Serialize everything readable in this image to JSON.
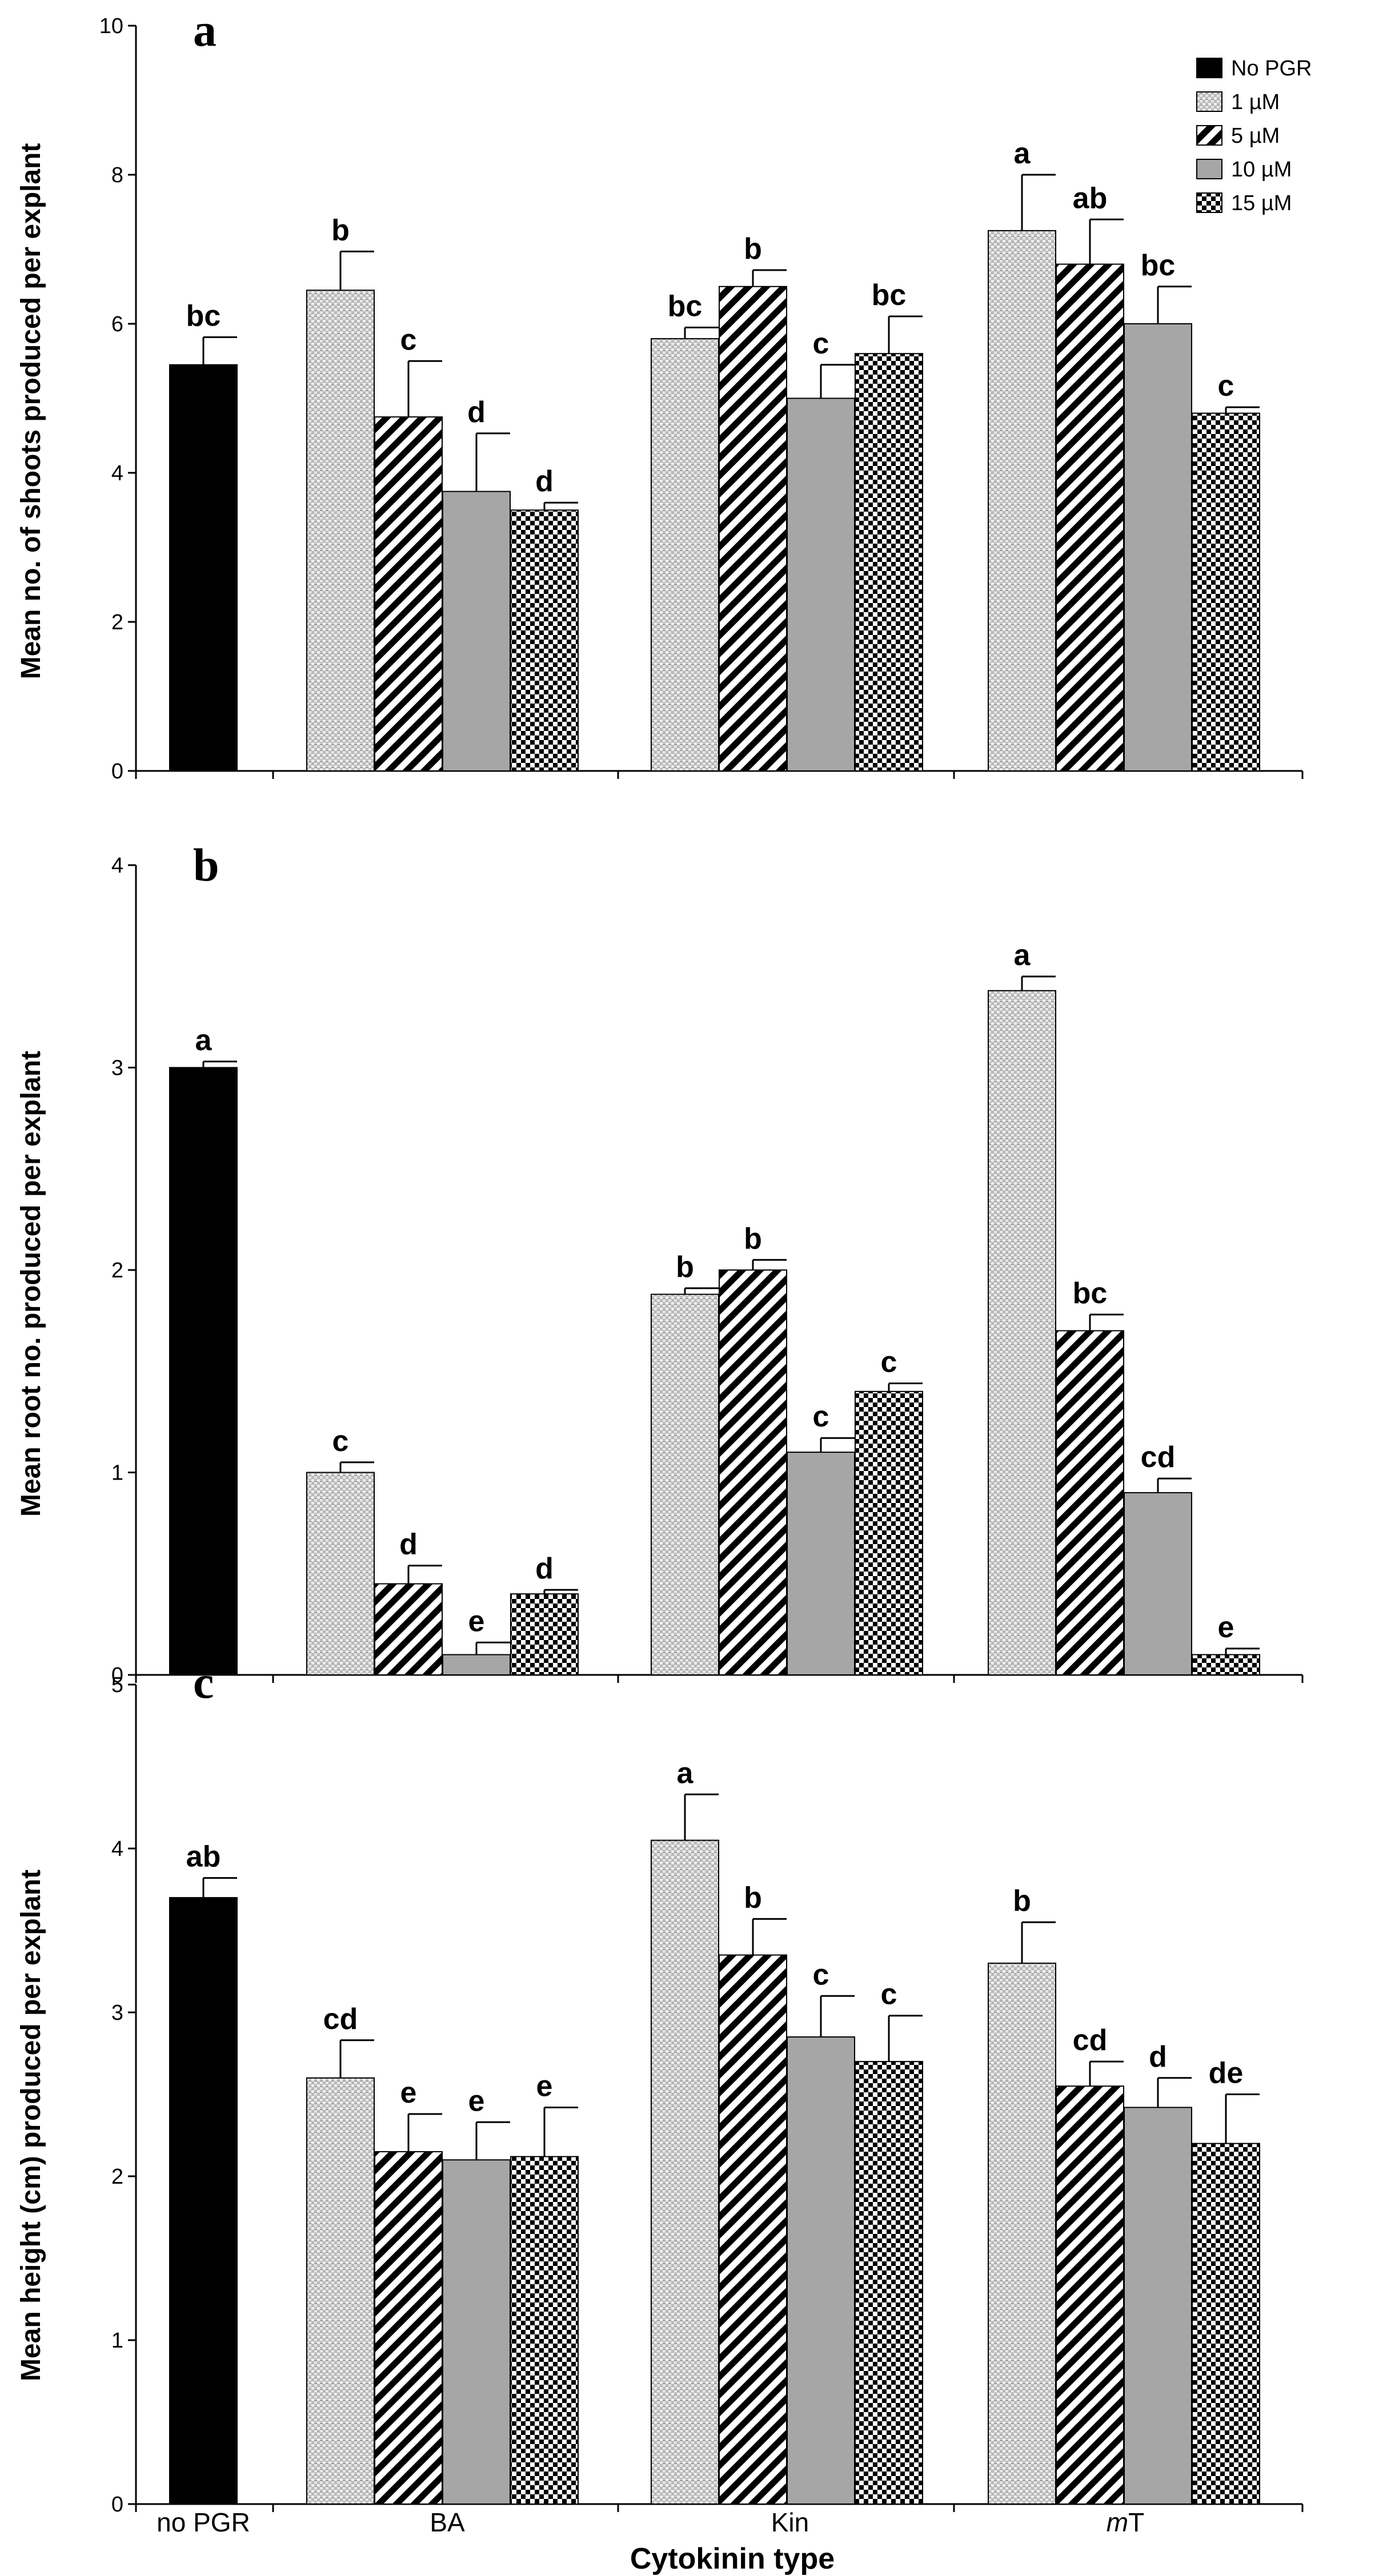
{
  "chart_data": [
    {
      "type": "bar",
      "panel": "a",
      "ylabel": "Mean no. of shoots produced per explant",
      "xlabel": "",
      "ylim": [
        0,
        10
      ],
      "yticks": [
        "0",
        "2",
        "4",
        "6",
        "8",
        "10"
      ],
      "categories": [
        "no PGR",
        "BA",
        "Kin",
        "mT"
      ],
      "series": [
        {
          "name": "No PGR",
          "values": [
            5.45,
            null,
            null,
            null
          ],
          "errors": [
            0.37,
            null,
            null,
            null
          ],
          "labels": [
            "bc",
            null,
            null,
            null
          ]
        },
        {
          "name": "1 µM",
          "values": [
            null,
            6.45,
            5.8,
            7.25
          ],
          "errors": [
            null,
            0.52,
            0.15,
            0.75
          ],
          "labels": [
            null,
            "b",
            "bc",
            "a"
          ]
        },
        {
          "name": "5 µM",
          "values": [
            null,
            4.75,
            6.5,
            6.8
          ],
          "errors": [
            null,
            0.75,
            0.22,
            0.6
          ],
          "labels": [
            null,
            "c",
            "b",
            "ab"
          ]
        },
        {
          "name": "10 µM",
          "values": [
            null,
            3.75,
            5.0,
            6.0
          ],
          "errors": [
            null,
            0.78,
            0.45,
            0.5
          ],
          "labels": [
            null,
            "d",
            "c",
            "bc"
          ]
        },
        {
          "name": "15 µM",
          "values": [
            null,
            3.5,
            5.6,
            4.8
          ],
          "errors": [
            null,
            0.1,
            0.5,
            0.08
          ],
          "labels": [
            null,
            "d",
            "bc",
            "c"
          ]
        }
      ]
    },
    {
      "type": "bar",
      "panel": "b",
      "ylabel": "Mean root no. produced per explant",
      "xlabel": "",
      "ylim": [
        0,
        4
      ],
      "yticks": [
        "0",
        "1",
        "2",
        "3",
        "4"
      ],
      "categories": [
        "no PGR",
        "BA",
        "Kin",
        "mT"
      ],
      "series": [
        {
          "name": "No PGR",
          "values": [
            3.0,
            null,
            null,
            null
          ],
          "errors": [
            0.03,
            null,
            null,
            null
          ],
          "labels": [
            "a",
            null,
            null,
            null
          ]
        },
        {
          "name": "1 µM",
          "values": [
            null,
            1.0,
            1.88,
            3.38
          ],
          "errors": [
            null,
            0.05,
            0.03,
            0.07
          ],
          "labels": [
            null,
            "c",
            "b",
            "a"
          ]
        },
        {
          "name": "5 µM",
          "values": [
            null,
            0.45,
            2.0,
            1.7
          ],
          "errors": [
            null,
            0.09,
            0.05,
            0.08
          ],
          "labels": [
            null,
            "d",
            "b",
            "bc"
          ]
        },
        {
          "name": "10 µM",
          "values": [
            null,
            0.1,
            1.1,
            0.9
          ],
          "errors": [
            null,
            0.06,
            0.07,
            0.07
          ],
          "labels": [
            null,
            "e",
            "c",
            "cd"
          ]
        },
        {
          "name": "15 µM",
          "values": [
            null,
            0.4,
            1.4,
            0.1
          ],
          "errors": [
            null,
            0.02,
            0.04,
            0.03
          ],
          "labels": [
            null,
            "d",
            "c",
            "e"
          ]
        }
      ]
    },
    {
      "type": "bar",
      "panel": "c",
      "ylabel": "Mean height (cm) produced per explant",
      "xlabel": "Cytokinin type",
      "ylim": [
        0,
        5
      ],
      "yticks": [
        "0",
        "1",
        "2",
        "3",
        "4",
        "5"
      ],
      "categories": [
        "no PGR",
        "BA",
        "Kin",
        "mT"
      ],
      "series": [
        {
          "name": "No PGR",
          "values": [
            3.7,
            null,
            null,
            null
          ],
          "errors": [
            0.12,
            null,
            null,
            null
          ],
          "labels": [
            "ab",
            null,
            null,
            null
          ]
        },
        {
          "name": "1 µM",
          "values": [
            null,
            2.6,
            4.05,
            3.3
          ],
          "errors": [
            null,
            0.23,
            0.28,
            0.25
          ],
          "labels": [
            null,
            "cd",
            "a",
            "b"
          ]
        },
        {
          "name": "5 µM",
          "values": [
            null,
            2.15,
            3.35,
            2.55
          ],
          "errors": [
            null,
            0.23,
            0.22,
            0.15
          ],
          "labels": [
            null,
            "e",
            "b",
            "cd"
          ]
        },
        {
          "name": "10 µM",
          "values": [
            null,
            2.1,
            2.85,
            2.42
          ],
          "errors": [
            null,
            0.23,
            0.25,
            0.18
          ],
          "labels": [
            null,
            "e",
            "c",
            "d"
          ]
        },
        {
          "name": "15 µM",
          "values": [
            null,
            2.12,
            2.7,
            2.2
          ],
          "errors": [
            null,
            0.3,
            0.28,
            0.3
          ],
          "labels": [
            null,
            "e",
            "c",
            "de"
          ]
        }
      ]
    }
  ],
  "legend": {
    "placement": "top-right",
    "items": [
      {
        "label": "No PGR",
        "pattern": "solid-black"
      },
      {
        "label": "1 µM",
        "pattern": "dotted-light"
      },
      {
        "label": "5 µM",
        "pattern": "diagonal-hatch"
      },
      {
        "label": "10 µM",
        "pattern": "solid-gray"
      },
      {
        "label": "15 µM",
        "pattern": "checker"
      }
    ]
  },
  "category_display": [
    {
      "text": "no PGR"
    },
    {
      "text": "BA"
    },
    {
      "text": "Kin"
    },
    {
      "italic_prefix": "m",
      "rest": "T"
    }
  ],
  "colors": {
    "black": "#000000",
    "gray": "#a6a6a6",
    "light": "#d4d4d4",
    "axis": "#000000"
  }
}
